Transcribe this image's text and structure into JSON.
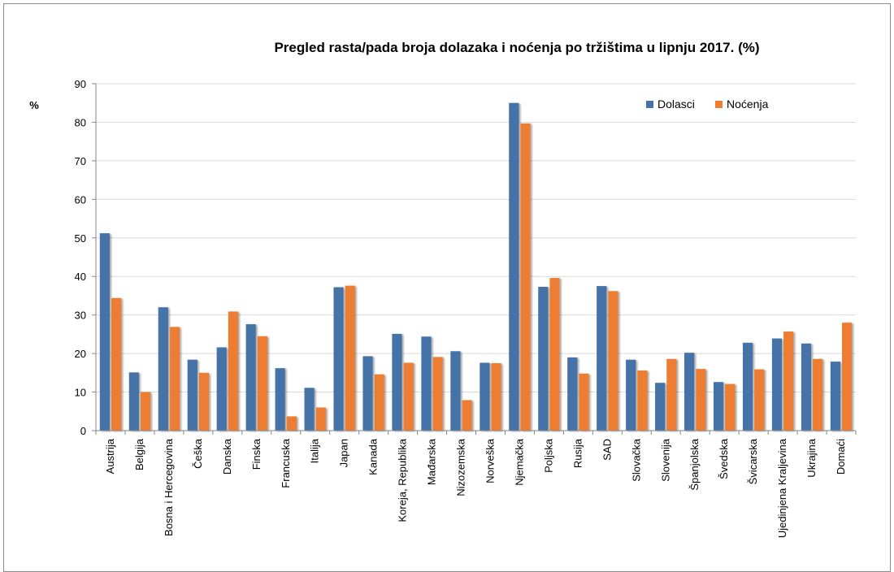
{
  "chart_data": {
    "type": "bar",
    "title": "Pregled rasta/pada broja dolazaka i noćenja po tržištima u lipnju 2017. (%)",
    "ylabel": "%",
    "xlabel": "",
    "ylim": [
      0,
      90
    ],
    "yticks": [
      0,
      10,
      20,
      30,
      40,
      50,
      60,
      70,
      80,
      90
    ],
    "grid": true,
    "legend_position": "top-right",
    "categories": [
      "Austrija",
      "Belgija",
      "Bosna i Hercegovina",
      "Češka",
      "Danska",
      "Finska",
      "Francuska",
      "Italija",
      "Japan",
      "Kanada",
      "Koreja, Republika",
      "Mađarska",
      "Nizozemska",
      "Norveška",
      "Njemačka",
      "Poljska",
      "Rusija",
      "SAD",
      "Slovačka",
      "Slovenija",
      "Španjolska",
      "Švedska",
      "Švicarska",
      "Ujedinjena Kraljevina",
      "Ukrajina",
      "Domaći"
    ],
    "series": [
      {
        "name": "Dolasci",
        "color": "#4572a7",
        "values": [
          51.2,
          15.1,
          32.0,
          18.4,
          21.6,
          27.6,
          16.2,
          11.1,
          37.2,
          19.3,
          25.1,
          24.4,
          20.6,
          17.6,
          85.0,
          37.3,
          19.0,
          37.5,
          18.4,
          12.4,
          20.2,
          12.6,
          22.8,
          23.9,
          22.6,
          17.9
        ]
      },
      {
        "name": "Noćenja",
        "color": "#ed7d31",
        "values": [
          34.4,
          10.0,
          26.9,
          15.0,
          30.9,
          24.5,
          3.7,
          6.0,
          37.6,
          14.6,
          17.6,
          19.1,
          7.9,
          17.5,
          79.7,
          39.6,
          14.8,
          36.2,
          15.6,
          18.6,
          16.0,
          12.1,
          15.9,
          25.7,
          18.6,
          28.0
        ]
      }
    ]
  }
}
